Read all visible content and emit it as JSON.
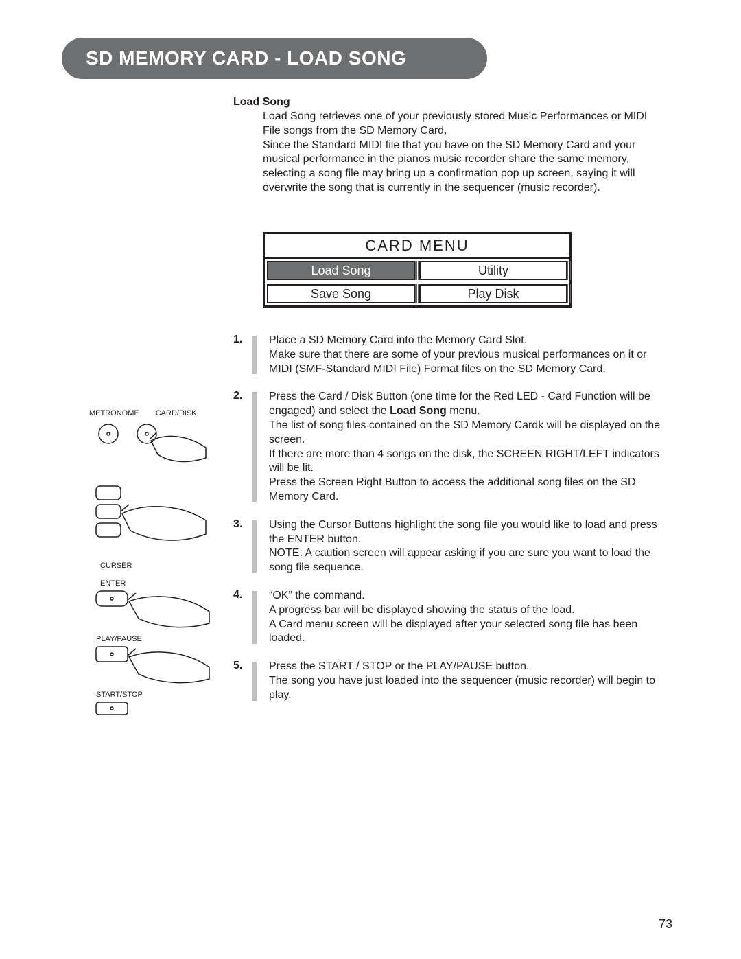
{
  "header": {
    "title": "SD MEMORY CARD - LOAD SONG"
  },
  "section_title": "Load Song",
  "intro": "Load Song retrieves one of your previously stored Music Performances or MIDI File songs from the SD Memory Card.\nSince the Standard MIDI file that you have on the SD Memory Card and your musical performance in the pianos music recorder share the same memory, selecting a song file may bring up a confirmation pop up screen, saying it will overwrite the song that is currently in the sequencer (music recorder).",
  "card_menu": {
    "title": "CARD MENU",
    "items": [
      {
        "label": "Load Song",
        "selected": true
      },
      {
        "label": "Utility",
        "selected": false
      },
      {
        "label": "Save Song",
        "selected": false
      },
      {
        "label": "Play Disk",
        "selected": false
      }
    ]
  },
  "steps": [
    {
      "num": "1.",
      "html": "Place a SD Memory Card into the Memory Card Slot.<br>Make sure that there are some of your previous musical performances on it or MIDI (SMF-Standard MIDI File) Format files on the SD Memory Card."
    },
    {
      "num": "2.",
      "html": "Press the Card / Disk Button (one time for the Red LED - Card Function will be engaged) and select the <b>Load Song</b> menu.<br>The list of song files contained on the SD Memory Cardk will be displayed on the screen.<br>If there are more than 4 songs on the disk, the SCREEN RIGHT/LEFT indicators will be lit.<br>Press the Screen Right Button to access the additional song files on the SD Memory Card."
    },
    {
      "num": "3.",
      "html": "Using the Cursor Buttons highlight the song file you would like to load and press the ENTER button.<br>NOTE: A caution screen will appear asking if you are sure you want to load the song file sequence."
    },
    {
      "num": "4.",
      "html": "“OK” the command.<br>A progress bar will be displayed showing the status of the load.<br>A Card menu screen will be displayed after your selected song file has been loaded."
    },
    {
      "num": "5.",
      "html": "Press the START / STOP or the PLAY/PAUSE button.<br>The song you have just loaded into the sequencer (music recorder) will begin to play."
    }
  ],
  "left_labels": {
    "metronome": "METRONOME",
    "carddisk": "CARD/DISK",
    "curser": "CURSER",
    "enter": "ENTER",
    "playpause": "PLAY/PAUSE",
    "startstop": "START/STOP"
  },
  "page_number": "73",
  "colors": {
    "banner_bg": "#6e6f70",
    "banner_text": "#ffffff",
    "body_text": "#231f20",
    "step_bar": "#bdbfc1",
    "page_bg": "#ffffff"
  }
}
